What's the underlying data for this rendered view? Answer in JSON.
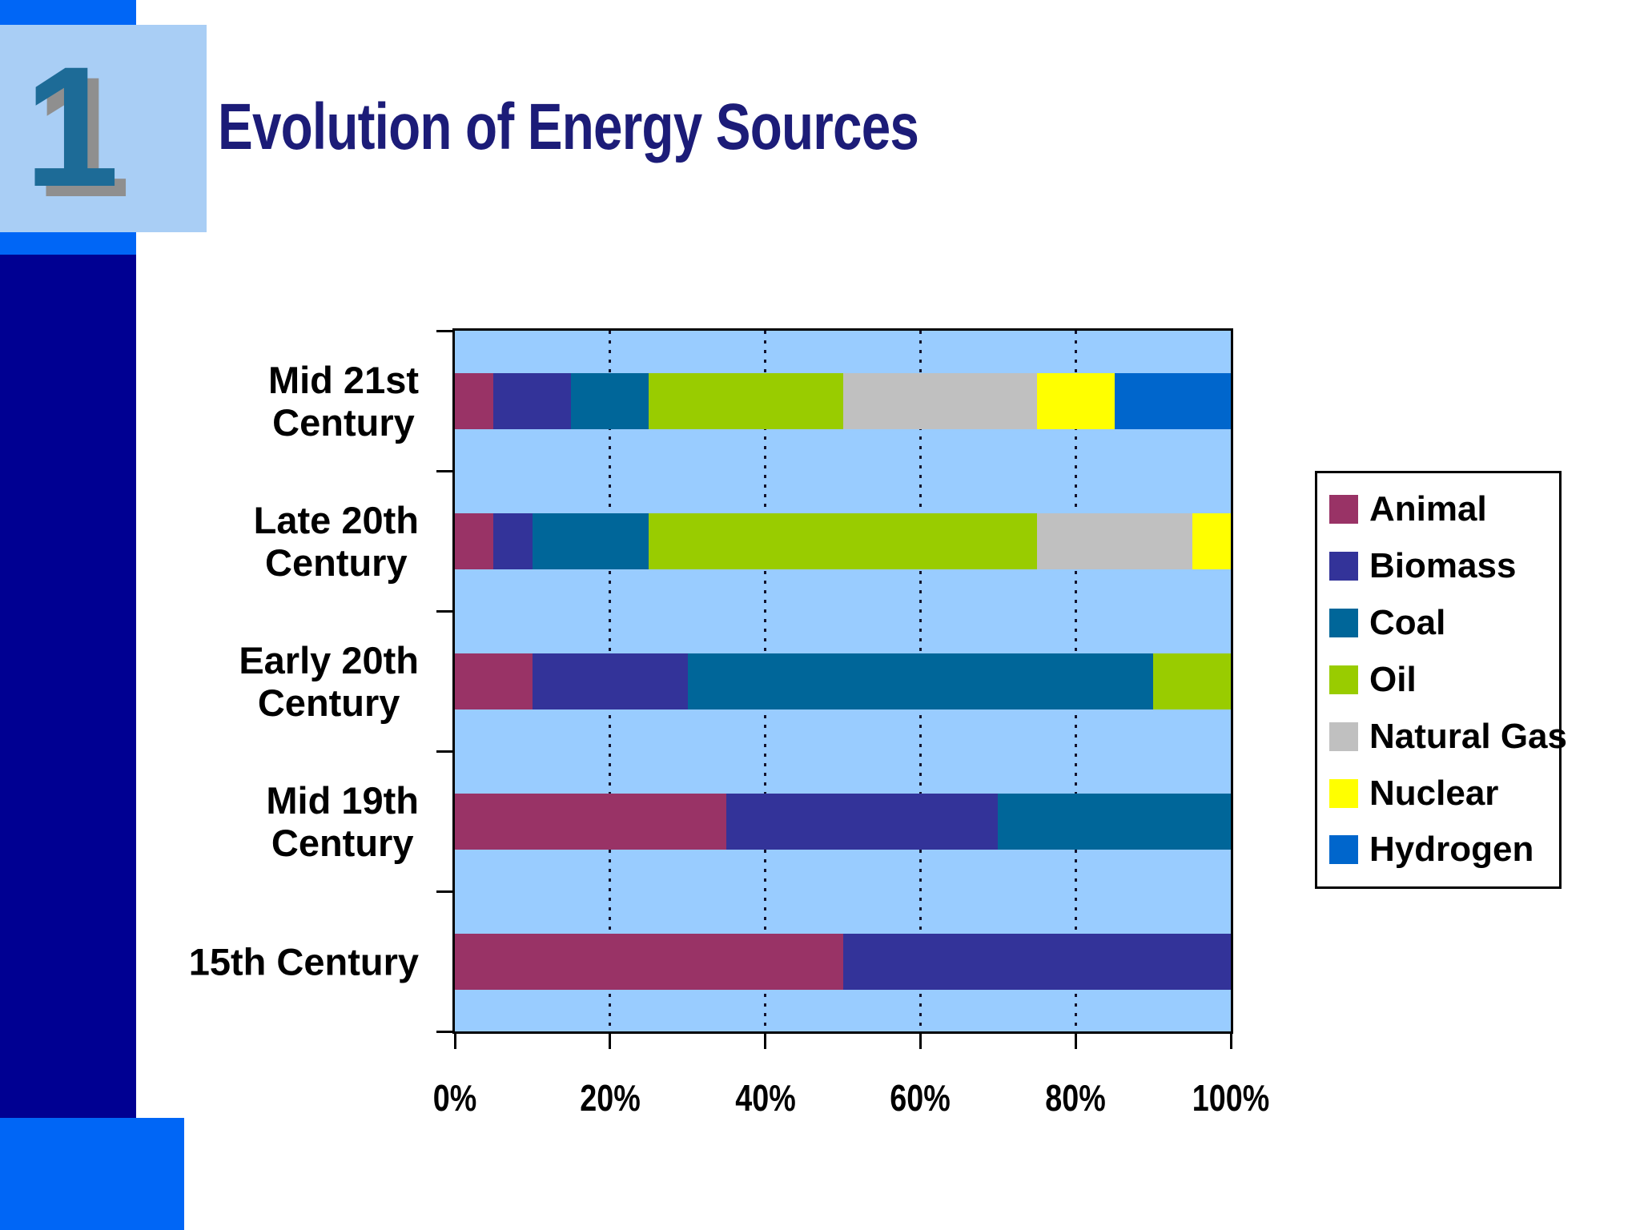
{
  "page": {
    "badge_number": "1",
    "title": "Evolution of Energy Sources"
  },
  "colors": {
    "accent_blue": "#0066F6",
    "navy_sidebar": "#000092",
    "badge_square_blue": "#A9CEF5",
    "badge_number_teal": "#1D6B97",
    "title_navy": "#1C1C78",
    "plot_background": "#99CCFF"
  },
  "chart_data": {
    "type": "bar",
    "orientation": "horizontal",
    "stacked": true,
    "title": "",
    "xlabel": "",
    "ylabel": "",
    "xlim": [
      0,
      100
    ],
    "grid": "dashed vertical gridlines at 20, 40, 60, 80 percent",
    "legend_position": "right",
    "plot_bg": "#99CCFF",
    "categories": [
      "Mid 21st Century",
      "Late 20th Century",
      "Early 20th Century",
      "Mid 19th Century",
      "15th Century"
    ],
    "category_label_lines": [
      [
        "Mid 21st",
        "Century"
      ],
      [
        "Late 20th",
        "Century"
      ],
      [
        "Early 20th",
        "Century"
      ],
      [
        "Mid 19th",
        "Century"
      ],
      [
        "15th Century"
      ]
    ],
    "x_tick_labels": [
      "0%",
      "20%",
      "40%",
      "60%",
      "80%",
      "100%"
    ],
    "gridline_percents": [
      20,
      40,
      60,
      80
    ],
    "series": [
      {
        "name": "Animal",
        "color": "#993366",
        "values": [
          5,
          5,
          10,
          35,
          50
        ]
      },
      {
        "name": "Biomass",
        "color": "#333399",
        "values": [
          10,
          5,
          20,
          35,
          50
        ]
      },
      {
        "name": "Coal",
        "color": "#006699",
        "values": [
          10,
          15,
          60,
          30,
          0
        ]
      },
      {
        "name": "Oil",
        "color": "#99CC00",
        "values": [
          25,
          50,
          10,
          0,
          0
        ]
      },
      {
        "name": "Natural Gas",
        "color": "#C0C0C0",
        "values": [
          25,
          20,
          0,
          0,
          0
        ]
      },
      {
        "name": "Nuclear",
        "color": "#FFFF00",
        "values": [
          10,
          5,
          0,
          0,
          0
        ]
      },
      {
        "name": "Hydrogen",
        "color": "#0066CC",
        "values": [
          15,
          0,
          0,
          0,
          0
        ]
      }
    ]
  }
}
